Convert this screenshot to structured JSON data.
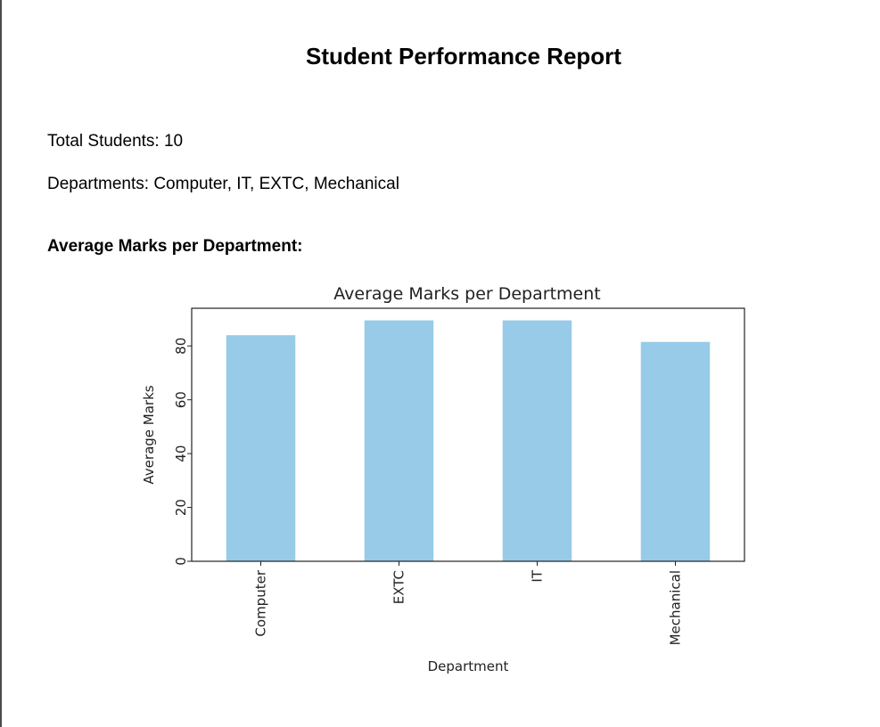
{
  "report": {
    "title": "Student Performance Report",
    "total_students_text": "Total Students: 10",
    "departments_text": "Departments: Computer, IT, EXTC, Mechanical",
    "section_heading": "Average Marks per Department:"
  },
  "colors": {
    "bar": "#97cbe7",
    "axis": "#222222"
  },
  "chart_data": {
    "type": "bar",
    "title": "Average Marks per Department",
    "xlabel": "Department",
    "ylabel": "Average Marks",
    "categories": [
      "Computer",
      "EXTC",
      "IT",
      "Mechanical"
    ],
    "values": [
      84,
      89.5,
      89.5,
      81.5
    ],
    "ylim": [
      0,
      94
    ],
    "yticks": [
      0,
      20,
      40,
      60,
      80
    ],
    "grid": false,
    "legend": "none"
  }
}
